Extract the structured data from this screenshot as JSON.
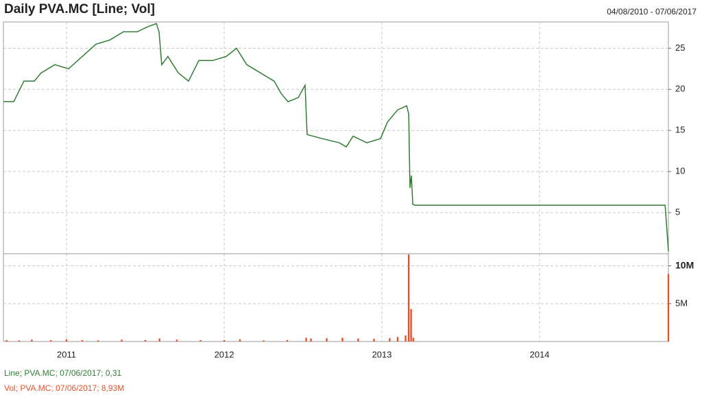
{
  "chart_data": [
    {
      "type": "line",
      "title": "Daily PVA.MC [Line; Vol]",
      "subtitle": "04/08/2010 - 07/06/2017",
      "x": [
        2010.6,
        2010.665,
        2010.73,
        2010.796,
        2010.839,
        2010.926,
        2011.013,
        2011.1,
        2011.187,
        2011.274,
        2011.361,
        2011.448,
        2011.513,
        2011.57,
        2011.587,
        2011.604,
        2011.643,
        2011.709,
        2011.774,
        2011.839,
        2011.926,
        2012.013,
        2012.078,
        2012.143,
        2012.23,
        2012.317,
        2012.361,
        2012.404,
        2012.47,
        2012.513,
        2012.526,
        2012.622,
        2012.73,
        2012.774,
        2012.817,
        2012.904,
        2012.991,
        2013.035,
        2013.1,
        2013.157,
        2013.17,
        2013.178,
        2013.187,
        2013.196,
        2013.209,
        2014.796,
        2014.817
      ],
      "series": [
        {
          "name": "Line; PVA.MC; 07/06/2017; 0,31",
          "color": "#2e7d32",
          "values": [
            18.5,
            18.5,
            21,
            21,
            22,
            23,
            22.5,
            24,
            25.5,
            26,
            27,
            27,
            27.6,
            28,
            27,
            23,
            24,
            22,
            21,
            23.5,
            23.5,
            24,
            25,
            23,
            22,
            21,
            19.5,
            18.5,
            19,
            20.5,
            14.5,
            14,
            13.5,
            13,
            14.3,
            13.5,
            14,
            16,
            17.5,
            18,
            17,
            8,
            9.5,
            6,
            5.9,
            5.9,
            0.31
          ]
        }
      ],
      "xlim": [
        2010.6,
        2014.817
      ],
      "xticks": [
        2011,
        2012,
        2013,
        2014
      ],
      "ylim": [
        0,
        28.2
      ],
      "yticks": [
        5,
        10,
        15,
        20,
        25
      ],
      "grid": true
    },
    {
      "type": "volume",
      "x": [
        2010.62,
        2010.7,
        2010.78,
        2010.9,
        2011.0,
        2011.1,
        2011.2,
        2011.35,
        2011.5,
        2011.59,
        2011.7,
        2011.85,
        2012.0,
        2012.1,
        2012.25,
        2012.4,
        2012.52,
        2012.55,
        2012.65,
        2012.75,
        2012.85,
        2012.95,
        2013.05,
        2013.1,
        2013.15,
        2013.17,
        2013.185,
        2013.2,
        2014.817
      ],
      "series": [
        {
          "name": "Vol; PVA.MC; 07/06/2017; 8,93M",
          "color": "#e8502a",
          "values": [
            200000,
            150000,
            250000,
            180000,
            300000,
            200000,
            150000,
            250000,
            200000,
            400000,
            250000,
            180000,
            200000,
            300000,
            150000,
            200000,
            500000,
            400000,
            450000,
            500000,
            400000,
            350000,
            450000,
            600000,
            800000,
            11500000,
            4300000,
            500000,
            8930000
          ]
        }
      ],
      "xlim": [
        2010.6,
        2014.817
      ],
      "xticks": [
        2011,
        2012,
        2013,
        2014
      ],
      "ylim": [
        0,
        11600000
      ],
      "yticks": [
        {
          "value": 5000000,
          "label": "5M"
        },
        {
          "value": 10000000,
          "label": "10M"
        }
      ],
      "grid": true
    }
  ]
}
